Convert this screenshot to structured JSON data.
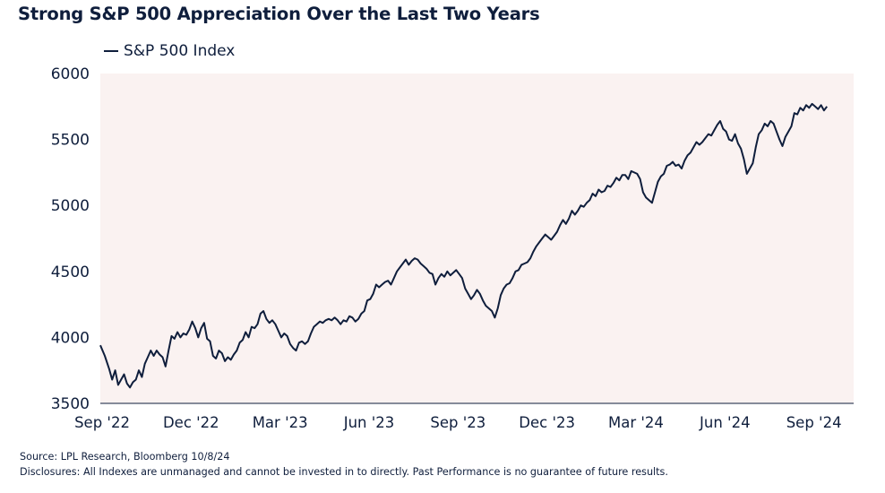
{
  "header": {
    "title": "Strong S&P 500 Appreciation Over the Last Two Years"
  },
  "colors": {
    "line": "#0f1e3c",
    "plot_background": "#faf2f1",
    "axis": "#0f1e3c"
  },
  "footer": {
    "source": "Source: LPL Research, Bloomberg 10/8/24",
    "disclosure": "Disclosures: All Indexes are unmanaged and cannot be invested in to directly. Past Performance is no guarantee of future results."
  },
  "chart_data": {
    "type": "line",
    "title": "Strong S&P 500 Appreciation Over the Last Two Years",
    "xlabel": "",
    "ylabel": "",
    "ylim": [
      3500,
      6000
    ],
    "xlim": [
      0,
      25.4
    ],
    "yticks": [
      3500,
      4000,
      4500,
      5000,
      5500,
      6000
    ],
    "ytick_labels": [
      "3500",
      "4000",
      "4500",
      "5000",
      "5500",
      "6000"
    ],
    "xticks": [
      0,
      3,
      6,
      9,
      12,
      15,
      18,
      21,
      24
    ],
    "xtick_labels": [
      "Sep '22",
      "Dec '22",
      "Mar '23",
      "Jun '23",
      "Sep '23",
      "Dec '23",
      "Mar '24",
      "Jun '24",
      "Sep '24"
    ],
    "x_unit": "months since Sep 2022",
    "legend": "top-left",
    "grid": false,
    "series": [
      {
        "name": "S&P 500 Index",
        "points": [
          [
            0.0,
            3940
          ],
          [
            0.15,
            3860
          ],
          [
            0.3,
            3760
          ],
          [
            0.4,
            3680
          ],
          [
            0.5,
            3750
          ],
          [
            0.6,
            3640
          ],
          [
            0.7,
            3680
          ],
          [
            0.8,
            3720
          ],
          [
            0.9,
            3650
          ],
          [
            1.0,
            3620
          ],
          [
            1.1,
            3660
          ],
          [
            1.2,
            3680
          ],
          [
            1.3,
            3750
          ],
          [
            1.4,
            3700
          ],
          [
            1.5,
            3800
          ],
          [
            1.6,
            3850
          ],
          [
            1.7,
            3900
          ],
          [
            1.8,
            3860
          ],
          [
            1.9,
            3900
          ],
          [
            2.0,
            3870
          ],
          [
            2.1,
            3850
          ],
          [
            2.2,
            3780
          ],
          [
            2.3,
            3900
          ],
          [
            2.4,
            4010
          ],
          [
            2.5,
            3990
          ],
          [
            2.6,
            4040
          ],
          [
            2.7,
            4000
          ],
          [
            2.8,
            4030
          ],
          [
            2.9,
            4020
          ],
          [
            3.0,
            4060
          ],
          [
            3.1,
            4120
          ],
          [
            3.2,
            4070
          ],
          [
            3.3,
            4000
          ],
          [
            3.4,
            4070
          ],
          [
            3.5,
            4110
          ],
          [
            3.6,
            3990
          ],
          [
            3.7,
            3970
          ],
          [
            3.8,
            3860
          ],
          [
            3.9,
            3840
          ],
          [
            4.0,
            3900
          ],
          [
            4.1,
            3880
          ],
          [
            4.2,
            3820
          ],
          [
            4.3,
            3850
          ],
          [
            4.4,
            3830
          ],
          [
            4.5,
            3870
          ],
          [
            4.6,
            3900
          ],
          [
            4.7,
            3960
          ],
          [
            4.8,
            3980
          ],
          [
            4.9,
            4040
          ],
          [
            5.0,
            4000
          ],
          [
            5.1,
            4080
          ],
          [
            5.2,
            4070
          ],
          [
            5.3,
            4100
          ],
          [
            5.4,
            4180
          ],
          [
            5.5,
            4200
          ],
          [
            5.6,
            4140
          ],
          [
            5.7,
            4110
          ],
          [
            5.8,
            4130
          ],
          [
            5.9,
            4100
          ],
          [
            6.0,
            4050
          ],
          [
            6.1,
            4000
          ],
          [
            6.2,
            4030
          ],
          [
            6.3,
            4010
          ],
          [
            6.4,
            3950
          ],
          [
            6.5,
            3920
          ],
          [
            6.6,
            3900
          ],
          [
            6.7,
            3960
          ],
          [
            6.8,
            3970
          ],
          [
            6.9,
            3950
          ],
          [
            7.0,
            3970
          ],
          [
            7.1,
            4030
          ],
          [
            7.2,
            4080
          ],
          [
            7.3,
            4100
          ],
          [
            7.4,
            4120
          ],
          [
            7.5,
            4110
          ],
          [
            7.6,
            4130
          ],
          [
            7.7,
            4140
          ],
          [
            7.8,
            4130
          ],
          [
            7.9,
            4150
          ],
          [
            8.0,
            4130
          ],
          [
            8.1,
            4100
          ],
          [
            8.2,
            4130
          ],
          [
            8.3,
            4120
          ],
          [
            8.4,
            4160
          ],
          [
            8.5,
            4150
          ],
          [
            8.6,
            4120
          ],
          [
            8.7,
            4140
          ],
          [
            8.8,
            4180
          ],
          [
            8.9,
            4200
          ],
          [
            9.0,
            4280
          ],
          [
            9.1,
            4290
          ],
          [
            9.2,
            4330
          ],
          [
            9.3,
            4400
          ],
          [
            9.4,
            4380
          ],
          [
            9.5,
            4400
          ],
          [
            9.6,
            4420
          ],
          [
            9.7,
            4430
          ],
          [
            9.8,
            4400
          ],
          [
            9.9,
            4450
          ],
          [
            10.0,
            4500
          ],
          [
            10.1,
            4530
          ],
          [
            10.2,
            4560
          ],
          [
            10.3,
            4590
          ],
          [
            10.4,
            4550
          ],
          [
            10.5,
            4580
          ],
          [
            10.6,
            4600
          ],
          [
            10.7,
            4590
          ],
          [
            10.8,
            4560
          ],
          [
            10.9,
            4540
          ],
          [
            11.0,
            4520
          ],
          [
            11.1,
            4490
          ],
          [
            11.2,
            4480
          ],
          [
            11.3,
            4400
          ],
          [
            11.4,
            4450
          ],
          [
            11.5,
            4480
          ],
          [
            11.6,
            4460
          ],
          [
            11.7,
            4500
          ],
          [
            11.8,
            4470
          ],
          [
            11.9,
            4490
          ],
          [
            12.0,
            4510
          ],
          [
            12.1,
            4480
          ],
          [
            12.2,
            4450
          ],
          [
            12.3,
            4370
          ],
          [
            12.4,
            4330
          ],
          [
            12.5,
            4290
          ],
          [
            12.6,
            4320
          ],
          [
            12.7,
            4360
          ],
          [
            12.8,
            4330
          ],
          [
            12.9,
            4280
          ],
          [
            13.0,
            4240
          ],
          [
            13.1,
            4220
          ],
          [
            13.2,
            4200
          ],
          [
            13.3,
            4150
          ],
          [
            13.4,
            4220
          ],
          [
            13.5,
            4320
          ],
          [
            13.6,
            4370
          ],
          [
            13.7,
            4400
          ],
          [
            13.8,
            4410
          ],
          [
            13.9,
            4450
          ],
          [
            14.0,
            4500
          ],
          [
            14.1,
            4510
          ],
          [
            14.2,
            4550
          ],
          [
            14.3,
            4560
          ],
          [
            14.4,
            4570
          ],
          [
            14.5,
            4600
          ],
          [
            14.6,
            4650
          ],
          [
            14.7,
            4690
          ],
          [
            14.8,
            4720
          ],
          [
            14.9,
            4750
          ],
          [
            15.0,
            4780
          ],
          [
            15.1,
            4760
          ],
          [
            15.2,
            4740
          ],
          [
            15.3,
            4770
          ],
          [
            15.4,
            4800
          ],
          [
            15.5,
            4850
          ],
          [
            15.6,
            4890
          ],
          [
            15.7,
            4860
          ],
          [
            15.8,
            4900
          ],
          [
            15.9,
            4960
          ],
          [
            16.0,
            4930
          ],
          [
            16.1,
            4960
          ],
          [
            16.2,
            5000
          ],
          [
            16.3,
            4990
          ],
          [
            16.4,
            5020
          ],
          [
            16.5,
            5040
          ],
          [
            16.6,
            5090
          ],
          [
            16.7,
            5070
          ],
          [
            16.8,
            5120
          ],
          [
            16.9,
            5100
          ],
          [
            17.0,
            5110
          ],
          [
            17.1,
            5150
          ],
          [
            17.2,
            5140
          ],
          [
            17.3,
            5170
          ],
          [
            17.4,
            5210
          ],
          [
            17.5,
            5190
          ],
          [
            17.6,
            5230
          ],
          [
            17.7,
            5230
          ],
          [
            17.8,
            5200
          ],
          [
            17.9,
            5260
          ],
          [
            18.0,
            5250
          ],
          [
            18.1,
            5240
          ],
          [
            18.2,
            5200
          ],
          [
            18.3,
            5100
          ],
          [
            18.4,
            5060
          ],
          [
            18.5,
            5040
          ],
          [
            18.6,
            5020
          ],
          [
            18.7,
            5100
          ],
          [
            18.8,
            5180
          ],
          [
            18.9,
            5220
          ],
          [
            19.0,
            5240
          ],
          [
            19.1,
            5300
          ],
          [
            19.2,
            5310
          ],
          [
            19.3,
            5330
          ],
          [
            19.4,
            5300
          ],
          [
            19.5,
            5310
          ],
          [
            19.6,
            5280
          ],
          [
            19.7,
            5340
          ],
          [
            19.8,
            5380
          ],
          [
            19.9,
            5400
          ],
          [
            20.0,
            5440
          ],
          [
            20.1,
            5480
          ],
          [
            20.2,
            5460
          ],
          [
            20.3,
            5480
          ],
          [
            20.4,
            5510
          ],
          [
            20.5,
            5540
          ],
          [
            20.6,
            5530
          ],
          [
            20.7,
            5570
          ],
          [
            20.8,
            5610
          ],
          [
            20.9,
            5640
          ],
          [
            21.0,
            5580
          ],
          [
            21.1,
            5560
          ],
          [
            21.2,
            5500
          ],
          [
            21.3,
            5490
          ],
          [
            21.4,
            5540
          ],
          [
            21.5,
            5470
          ],
          [
            21.6,
            5430
          ],
          [
            21.7,
            5350
          ],
          [
            21.8,
            5240
          ],
          [
            21.9,
            5280
          ],
          [
            22.0,
            5320
          ],
          [
            22.1,
            5440
          ],
          [
            22.2,
            5540
          ],
          [
            22.3,
            5570
          ],
          [
            22.4,
            5620
          ],
          [
            22.5,
            5600
          ],
          [
            22.6,
            5640
          ],
          [
            22.7,
            5620
          ],
          [
            22.8,
            5560
          ],
          [
            22.9,
            5500
          ],
          [
            23.0,
            5450
          ],
          [
            23.1,
            5520
          ],
          [
            23.2,
            5560
          ],
          [
            23.3,
            5600
          ],
          [
            23.4,
            5700
          ],
          [
            23.5,
            5690
          ],
          [
            23.6,
            5740
          ],
          [
            23.7,
            5720
          ],
          [
            23.8,
            5760
          ],
          [
            23.9,
            5740
          ],
          [
            24.0,
            5770
          ],
          [
            24.1,
            5750
          ],
          [
            24.2,
            5730
          ],
          [
            24.3,
            5760
          ],
          [
            24.4,
            5720
          ],
          [
            24.5,
            5750
          ]
        ]
      }
    ]
  }
}
